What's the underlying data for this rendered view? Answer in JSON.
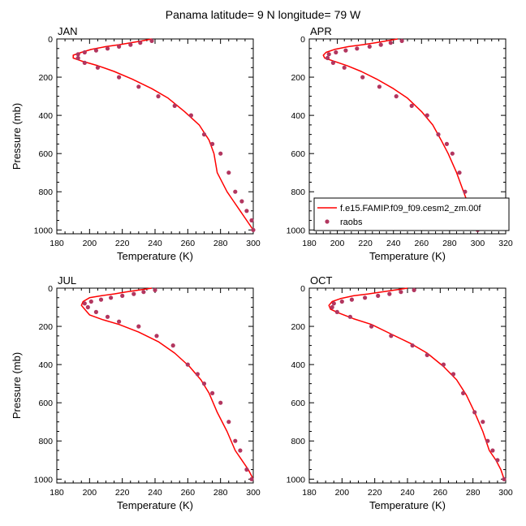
{
  "title": "Panama  latitude= 9 N longitude= 79 W",
  "colors": {
    "model": "#ff0000",
    "obs": "#b2365f"
  },
  "legend": {
    "model_label": "f.e15.FAMIP.f09_f09.cesm2_zm.00f",
    "obs_label": "raobs",
    "panel": "APR"
  },
  "chart_data": [
    {
      "type": "line",
      "panel": "JAN",
      "xlabel": "Temperature (K)",
      "ylabel": "Pressure (mb)",
      "xlim": [
        180,
        300
      ],
      "ylim": [
        1020,
        0
      ],
      "y_axis": "inverted",
      "xticks": [
        180,
        200,
        220,
        240,
        260,
        280,
        300
      ],
      "yticks": [
        0,
        200,
        400,
        600,
        800,
        1000
      ],
      "series": [
        {
          "name": "f.e15.FAMIP.f09_f09.cesm2_zm.00f",
          "style": "line",
          "x": [
            238,
            232,
            225,
            218,
            210,
            201,
            195,
            190,
            190,
            195,
            205,
            215,
            226,
            238,
            248,
            258,
            267,
            273,
            276,
            278,
            284,
            288,
            292,
            296,
            300
          ],
          "y": [
            0,
            10,
            20,
            30,
            40,
            55,
            70,
            85,
            100,
            115,
            140,
            170,
            210,
            260,
            310,
            380,
            450,
            530,
            600,
            700,
            800,
            850,
            900,
            950,
            1000
          ]
        },
        {
          "name": "raobs",
          "style": "markers",
          "x": [
            238,
            231,
            225,
            218,
            211,
            204,
            197,
            193,
            193,
            197,
            205,
            218,
            230,
            242,
            252,
            262,
            270,
            275,
            280,
            285,
            289,
            293,
            296,
            299,
            300
          ],
          "y": [
            10,
            20,
            30,
            40,
            50,
            60,
            70,
            80,
            100,
            125,
            150,
            200,
            250,
            300,
            350,
            400,
            500,
            550,
            600,
            700,
            800,
            850,
            900,
            950,
            1000
          ]
        }
      ]
    },
    {
      "type": "line",
      "panel": "APR",
      "xlabel": "Temperature (K)",
      "ylabel": "",
      "xlim": [
        180,
        320
      ],
      "ylim": [
        1020,
        0
      ],
      "y_axis": "inverted",
      "xticks": [
        180,
        200,
        220,
        240,
        260,
        280,
        300,
        320
      ],
      "yticks": [
        0,
        200,
        400,
        600,
        800,
        1000
      ],
      "series": [
        {
          "name": "f.e15.FAMIP.f09_f09.cesm2_zm.00f",
          "style": "line",
          "x": [
            243,
            235,
            227,
            218,
            208,
            198,
            192,
            190,
            191,
            197,
            207,
            217,
            228,
            240,
            250,
            260,
            268,
            274,
            279,
            285,
            290,
            294,
            297,
            300
          ],
          "y": [
            0,
            10,
            20,
            30,
            40,
            55,
            70,
            85,
            100,
            115,
            140,
            170,
            210,
            260,
            310,
            380,
            450,
            530,
            600,
            700,
            800,
            880,
            950,
            1000
          ]
        },
        {
          "name": "raobs",
          "style": "markers",
          "x": [
            246,
            238,
            231,
            223,
            214,
            206,
            199,
            194,
            193,
            197,
            205,
            218,
            230,
            242,
            253,
            264,
            272,
            278,
            282,
            287,
            291,
            294,
            297,
            300
          ],
          "y": [
            10,
            20,
            30,
            40,
            50,
            60,
            70,
            80,
            100,
            125,
            150,
            200,
            250,
            300,
            350,
            400,
            500,
            550,
            600,
            700,
            800,
            850,
            900,
            1000
          ]
        }
      ]
    },
    {
      "type": "line",
      "panel": "JUL",
      "xlabel": "Temperature (K)",
      "ylabel": "Pressure (mb)",
      "xlim": [
        180,
        300
      ],
      "ylim": [
        1020,
        0
      ],
      "y_axis": "inverted",
      "xticks": [
        180,
        200,
        220,
        240,
        260,
        280,
        300
      ],
      "yticks": [
        0,
        200,
        400,
        600,
        800,
        1000
      ],
      "series": [
        {
          "name": "f.e15.FAMIP.f09_f09.cesm2_zm.00f",
          "style": "line",
          "x": [
            238,
            230,
            222,
            215,
            207,
            200,
            196,
            195,
            197,
            200,
            208,
            218,
            230,
            242,
            252,
            261,
            268,
            273,
            278,
            284,
            289,
            293,
            297,
            300
          ],
          "y": [
            0,
            10,
            20,
            30,
            40,
            50,
            70,
            90,
            110,
            140,
            165,
            190,
            230,
            280,
            340,
            410,
            480,
            550,
            650,
            750,
            850,
            900,
            950,
            1000
          ]
        },
        {
          "name": "raobs",
          "style": "markers",
          "x": [
            240,
            233,
            227,
            220,
            213,
            207,
            201,
            197,
            199,
            204,
            211,
            218,
            230,
            241,
            251,
            260,
            266,
            270,
            275,
            280,
            285,
            289,
            292,
            296,
            299
          ],
          "y": [
            10,
            20,
            30,
            40,
            50,
            60,
            70,
            80,
            100,
            125,
            150,
            175,
            200,
            250,
            300,
            400,
            450,
            500,
            550,
            600,
            700,
            800,
            850,
            950,
            1000
          ]
        }
      ]
    },
    {
      "type": "line",
      "panel": "OCT",
      "xlabel": "Temperature (K)",
      "ylabel": "",
      "xlim": [
        180,
        300
      ],
      "ylim": [
        1020,
        0
      ],
      "y_axis": "inverted",
      "xticks": [
        180,
        200,
        220,
        240,
        260,
        280,
        300
      ],
      "yticks": [
        0,
        200,
        400,
        600,
        800,
        1000
      ],
      "series": [
        {
          "name": "f.e15.FAMIP.f09_f09.cesm2_zm.00f",
          "style": "line",
          "x": [
            240,
            232,
            224,
            216,
            207,
            199,
            194,
            192,
            193,
            198,
            207,
            218,
            230,
            242,
            252,
            262,
            270,
            276,
            281,
            286,
            290,
            294,
            297,
            299
          ],
          "y": [
            0,
            10,
            20,
            30,
            40,
            55,
            70,
            90,
            110,
            130,
            160,
            190,
            240,
            290,
            340,
            410,
            480,
            560,
            650,
            750,
            850,
            900,
            950,
            1000
          ]
        },
        {
          "name": "raobs",
          "style": "markers",
          "x": [
            244,
            236,
            229,
            222,
            214,
            206,
            200,
            195,
            194,
            197,
            205,
            218,
            230,
            243,
            252,
            262,
            268,
            274,
            281,
            286,
            289,
            292,
            295,
            299
          ],
          "y": [
            10,
            20,
            30,
            40,
            50,
            60,
            70,
            80,
            100,
            125,
            150,
            200,
            250,
            300,
            350,
            400,
            450,
            550,
            650,
            700,
            800,
            850,
            900,
            1000
          ]
        }
      ]
    }
  ]
}
